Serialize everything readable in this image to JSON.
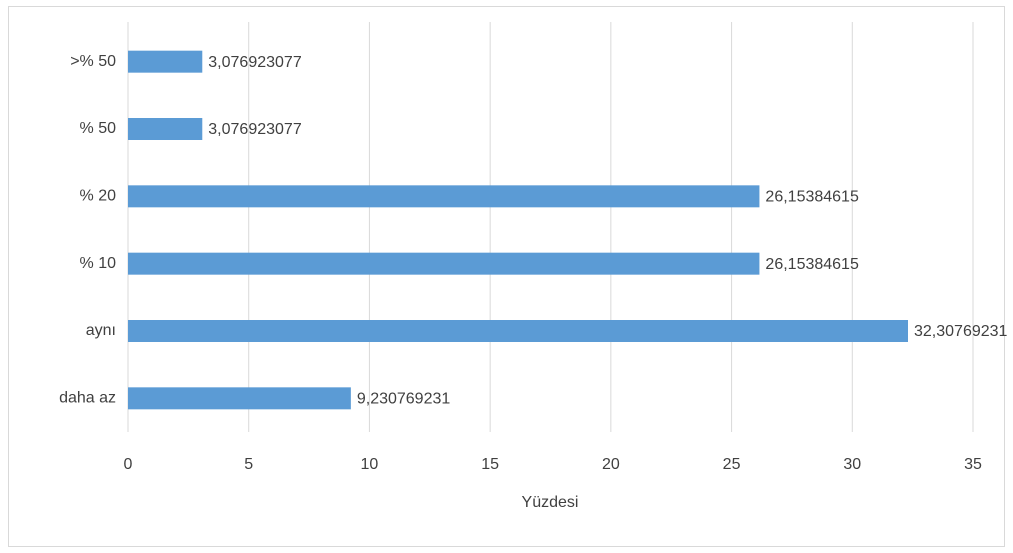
{
  "chart_data": {
    "type": "barh",
    "x_label": "Yüzdesi",
    "categories": [
      "daha az",
      "aynı",
      "% 10",
      "% 20",
      "% 50",
      ">% 50"
    ],
    "values": [
      9.230769231,
      32.30769231,
      26.15384615,
      26.15384615,
      3.076923077,
      3.076923077
    ],
    "value_labels": [
      "9,230769231",
      "32,30769231",
      "26,15384615",
      "26,15384615",
      "3,076923077",
      "3,076923077"
    ],
    "color": "#5b9bd5",
    "xlim": [
      0,
      35
    ],
    "xticks": [
      0,
      5,
      10,
      15,
      20,
      25,
      30,
      35
    ],
    "grid": true
  }
}
